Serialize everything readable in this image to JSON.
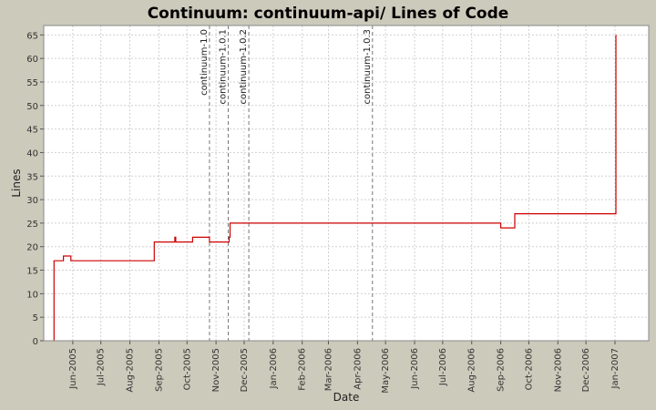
{
  "chart_data": {
    "type": "line",
    "title": "Continuum: continuum-api/ Lines of Code",
    "xlabel": "Date",
    "ylabel": "Lines",
    "ylim": [
      0,
      67
    ],
    "yticks": [
      0,
      5,
      10,
      15,
      20,
      25,
      30,
      35,
      40,
      45,
      50,
      55,
      60,
      65
    ],
    "xlim": [
      "2005-05-01",
      "2007-02-06"
    ],
    "xticks": [
      {
        "date": "2005-06-01",
        "label": "Jun-2005"
      },
      {
        "date": "2005-07-01",
        "label": "Jul-2005"
      },
      {
        "date": "2005-08-01",
        "label": "Aug-2005"
      },
      {
        "date": "2005-09-01",
        "label": "Sep-2005"
      },
      {
        "date": "2005-10-01",
        "label": "Oct-2005"
      },
      {
        "date": "2005-11-01",
        "label": "Nov-2005"
      },
      {
        "date": "2005-12-01",
        "label": "Dec-2005"
      },
      {
        "date": "2006-01-01",
        "label": "Jan-2006"
      },
      {
        "date": "2006-02-01",
        "label": "Feb-2006"
      },
      {
        "date": "2006-03-01",
        "label": "Mar-2006"
      },
      {
        "date": "2006-04-01",
        "label": "Apr-2006"
      },
      {
        "date": "2006-05-01",
        "label": "May-2006"
      },
      {
        "date": "2006-06-01",
        "label": "Jun-2006"
      },
      {
        "date": "2006-07-01",
        "label": "Jul-2006"
      },
      {
        "date": "2006-08-01",
        "label": "Aug-2006"
      },
      {
        "date": "2006-09-01",
        "label": "Sep-2006"
      },
      {
        "date": "2006-10-01",
        "label": "Oct-2006"
      },
      {
        "date": "2006-11-01",
        "label": "Nov-2006"
      },
      {
        "date": "2006-12-01",
        "label": "Dec-2006"
      },
      {
        "date": "2007-01-01",
        "label": "Jan-2007"
      }
    ],
    "grid": true,
    "series": [
      {
        "color": "#cc0000",
        "step": true,
        "points": [
          {
            "x": "2005-05-12",
            "y": 0
          },
          {
            "x": "2005-05-12",
            "y": 17
          },
          {
            "x": "2005-05-22",
            "y": 17
          },
          {
            "x": "2005-05-22",
            "y": 18
          },
          {
            "x": "2005-05-30",
            "y": 18
          },
          {
            "x": "2005-05-30",
            "y": 17
          },
          {
            "x": "2005-08-27",
            "y": 17
          },
          {
            "x": "2005-08-27",
            "y": 21
          },
          {
            "x": "2005-09-18",
            "y": 21
          },
          {
            "x": "2005-09-18",
            "y": 22
          },
          {
            "x": "2005-09-19",
            "y": 22
          },
          {
            "x": "2005-09-19",
            "y": 21
          },
          {
            "x": "2005-10-07",
            "y": 21
          },
          {
            "x": "2005-10-07",
            "y": 22
          },
          {
            "x": "2005-10-25",
            "y": 22
          },
          {
            "x": "2005-10-25",
            "y": 21
          },
          {
            "x": "2005-11-15",
            "y": 21
          },
          {
            "x": "2005-11-15",
            "y": 22
          },
          {
            "x": "2005-11-16",
            "y": 22
          },
          {
            "x": "2005-11-16",
            "y": 25
          },
          {
            "x": "2006-09-01",
            "y": 25
          },
          {
            "x": "2006-09-01",
            "y": 24
          },
          {
            "x": "2006-09-16",
            "y": 24
          },
          {
            "x": "2006-09-16",
            "y": 27
          },
          {
            "x": "2007-01-02",
            "y": 27
          },
          {
            "x": "2007-01-02",
            "y": 65
          }
        ]
      }
    ],
    "markers": [
      {
        "date": "2005-10-25",
        "label": "continuum-1.0"
      },
      {
        "date": "2005-11-14",
        "label": "continuum-1.0.1"
      },
      {
        "date": "2005-12-06",
        "label": "continuum-1.0.2"
      },
      {
        "date": "2006-04-17",
        "label": "continuum-1.0.3"
      }
    ],
    "colors": {
      "page_background": "#cccabb",
      "plot_background": "#ffffff",
      "gridline": "#d0d0d0",
      "marker_line": "#777777",
      "series": "#cc0000"
    }
  }
}
